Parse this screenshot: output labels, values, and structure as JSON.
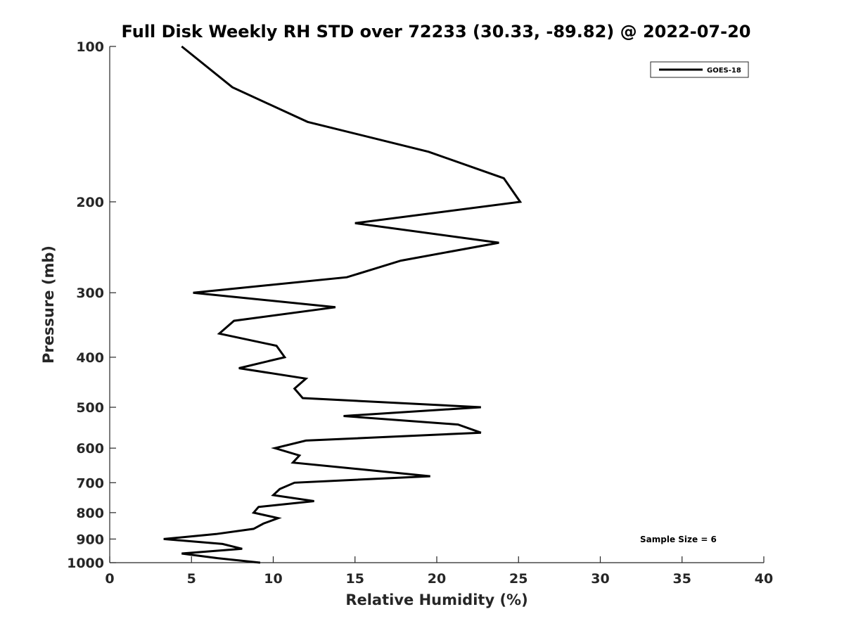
{
  "chart_data": {
    "type": "line",
    "title": "Full Disk Weekly RH STD over 72233 (30.33, -89.82) @ 2022-07-20",
    "xlabel": "Relative Humidity (%)",
    "ylabel": "Pressure (mb)",
    "xlim": [
      0,
      40
    ],
    "ylim": [
      100,
      1000
    ],
    "y_scale": "log",
    "y_reversed": true,
    "x_ticks": [
      0,
      5,
      10,
      15,
      20,
      25,
      30,
      35,
      40
    ],
    "y_ticks": [
      100,
      200,
      300,
      400,
      500,
      600,
      700,
      800,
      900,
      1000
    ],
    "grid": false,
    "legend": {
      "placement": "top-right",
      "entries": [
        "GOES-18"
      ]
    },
    "annotation": "Sample Size = 6",
    "series": [
      {
        "name": "GOES-18",
        "color": "#000000",
        "points": [
          [
            4.4,
            100
          ],
          [
            7.5,
            120
          ],
          [
            12.1,
            140
          ],
          [
            19.5,
            160
          ],
          [
            24.1,
            180
          ],
          [
            25.1,
            200
          ],
          [
            15.0,
            220
          ],
          [
            23.8,
            240
          ],
          [
            17.8,
            260
          ],
          [
            14.5,
            280
          ],
          [
            5.1,
            300
          ],
          [
            13.8,
            320
          ],
          [
            7.6,
            340
          ],
          [
            6.7,
            360
          ],
          [
            10.2,
            380
          ],
          [
            10.7,
            400
          ],
          [
            7.9,
            420
          ],
          [
            12.0,
            440
          ],
          [
            11.3,
            460
          ],
          [
            11.8,
            480
          ],
          [
            22.7,
            500
          ],
          [
            14.3,
            520
          ],
          [
            21.3,
            540
          ],
          [
            22.7,
            560
          ],
          [
            12.0,
            580
          ],
          [
            10.1,
            600
          ],
          [
            11.6,
            620
          ],
          [
            11.2,
            640
          ],
          [
            19.6,
            680
          ],
          [
            11.3,
            700
          ],
          [
            10.4,
            720
          ],
          [
            10.0,
            740
          ],
          [
            12.5,
            760
          ],
          [
            9.1,
            780
          ],
          [
            8.8,
            800
          ],
          [
            10.3,
            820
          ],
          [
            9.4,
            840
          ],
          [
            8.8,
            860
          ],
          [
            6.5,
            880
          ],
          [
            3.3,
            900
          ],
          [
            6.9,
            920
          ],
          [
            8.1,
            940
          ],
          [
            4.4,
            960
          ],
          [
            6.6,
            980
          ],
          [
            9.2,
            1000
          ]
        ]
      }
    ]
  }
}
